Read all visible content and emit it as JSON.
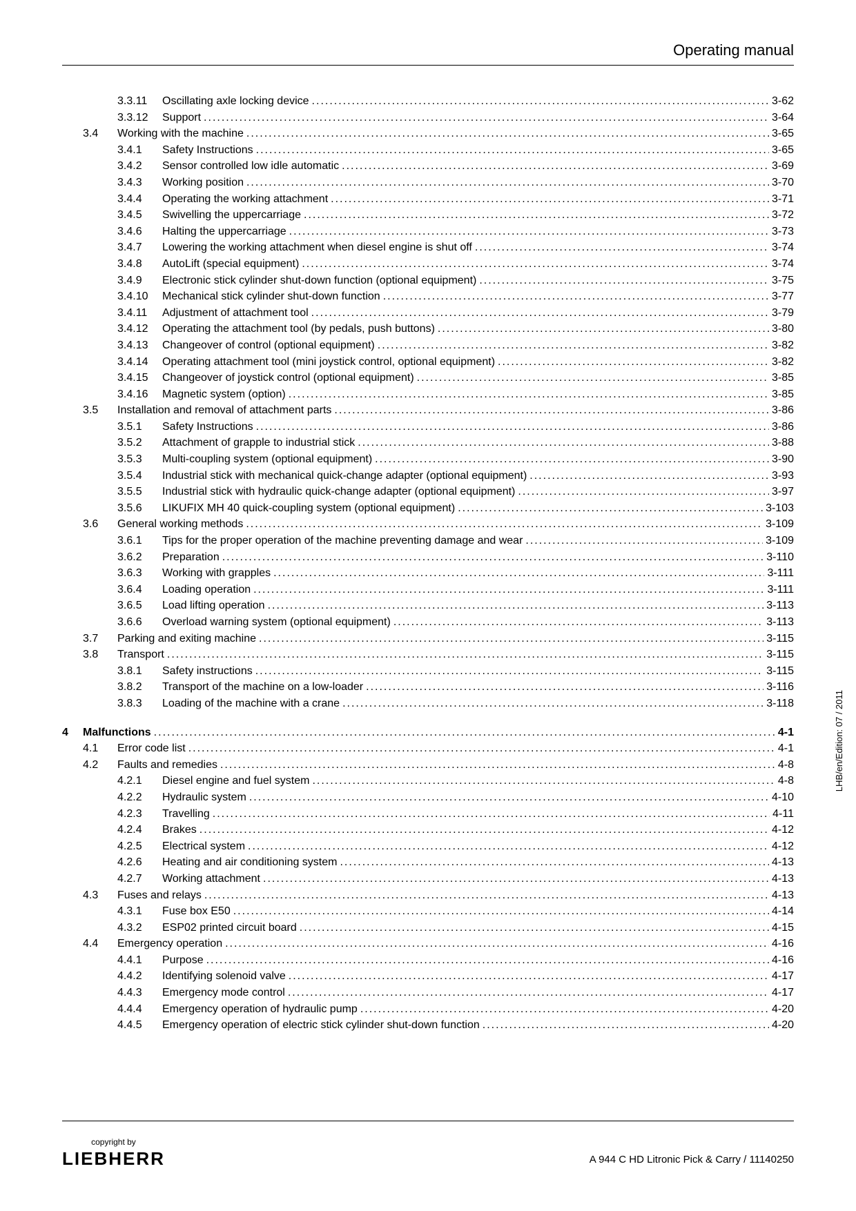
{
  "header": {
    "title": "Operating manual"
  },
  "side": {
    "text": "LHB/en/Edition: 07 / 2011"
  },
  "footer": {
    "copyright": "copyright by",
    "logo": "LIEBHERR",
    "docref": "A 944 C HD Litronic Pick & Carry / 11140250"
  },
  "toc": [
    {
      "type": "sub",
      "num": "3.3.11",
      "title": "Oscillating axle locking device",
      "page": "3-62"
    },
    {
      "type": "sub",
      "num": "3.3.12",
      "title": "Support",
      "page": "3-64"
    },
    {
      "type": "sec",
      "num": "3.4",
      "title": "Working with the machine",
      "page": "3-65"
    },
    {
      "type": "sub",
      "num": "3.4.1",
      "title": "Safety Instructions",
      "page": "3-65"
    },
    {
      "type": "sub",
      "num": "3.4.2",
      "title": "Sensor controlled low idle automatic",
      "page": "3-69"
    },
    {
      "type": "sub",
      "num": "3.4.3",
      "title": "Working position",
      "page": "3-70"
    },
    {
      "type": "sub",
      "num": "3.4.4",
      "title": "Operating the working attachment",
      "page": "3-71"
    },
    {
      "type": "sub",
      "num": "3.4.5",
      "title": "Swivelling the uppercarriage",
      "page": "3-72"
    },
    {
      "type": "sub",
      "num": "3.4.6",
      "title": "Halting the uppercarriage",
      "page": "3-73"
    },
    {
      "type": "sub",
      "num": "3.4.7",
      "title": "Lowering the working attachment when diesel engine is shut off",
      "page": "3-74"
    },
    {
      "type": "sub",
      "num": "3.4.8",
      "title": "AutoLift (special equipment)",
      "page": "3-74"
    },
    {
      "type": "sub",
      "num": "3.4.9",
      "title": "Electronic stick cylinder shut-down function (optional equipment)",
      "page": "3-75"
    },
    {
      "type": "sub",
      "num": "3.4.10",
      "title": "Mechanical stick cylinder shut-down function",
      "page": "3-77"
    },
    {
      "type": "sub",
      "num": "3.4.11",
      "title": "Adjustment of attachment tool",
      "page": "3-79"
    },
    {
      "type": "sub",
      "num": "3.4.12",
      "title": "Operating the attachment tool (by pedals, push buttons)",
      "page": "3-80"
    },
    {
      "type": "sub",
      "num": "3.4.13",
      "title": "Changeover of control (optional equipment)",
      "page": "3-82"
    },
    {
      "type": "sub",
      "num": "3.4.14",
      "title": "Operating attachment tool (mini joystick control, optional equipment)",
      "page": "3-82"
    },
    {
      "type": "sub",
      "num": "3.4.15",
      "title": "Changeover of joystick control (optional equipment)",
      "page": "3-85"
    },
    {
      "type": "sub",
      "num": "3.4.16",
      "title": "Magnetic system (option)",
      "page": "3-85"
    },
    {
      "type": "sec",
      "num": "3.5",
      "title": "Installation and removal of attachment parts",
      "page": "3-86"
    },
    {
      "type": "sub",
      "num": "3.5.1",
      "title": "Safety Instructions",
      "page": "3-86"
    },
    {
      "type": "sub",
      "num": "3.5.2",
      "title": "Attachment of grapple to industrial stick",
      "page": "3-88"
    },
    {
      "type": "sub",
      "num": "3.5.3",
      "title": "Multi-coupling system (optional equipment)",
      "page": "3-90"
    },
    {
      "type": "sub",
      "num": "3.5.4",
      "title": "Industrial stick with mechanical quick-change adapter (optional equipment)",
      "page": "3-93"
    },
    {
      "type": "sub",
      "num": "3.5.5",
      "title": "Industrial stick with hydraulic quick-change adapter (optional equipment)",
      "page": "3-97"
    },
    {
      "type": "sub",
      "num": "3.5.6",
      "title": "LIKUFIX MH 40 quick-coupling system (optional equipment)",
      "page": "3-103"
    },
    {
      "type": "sec",
      "num": "3.6",
      "title": "General working methods",
      "page": "3-109"
    },
    {
      "type": "sub",
      "num": "3.6.1",
      "title": "Tips for the proper operation of the machine preventing damage and wear",
      "page": "3-109"
    },
    {
      "type": "sub",
      "num": "3.6.2",
      "title": "Preparation",
      "page": "3-110"
    },
    {
      "type": "sub",
      "num": "3.6.3",
      "title": "Working with grapples",
      "page": "3-111"
    },
    {
      "type": "sub",
      "num": "3.6.4",
      "title": "Loading operation",
      "page": "3-111"
    },
    {
      "type": "sub",
      "num": "3.6.5",
      "title": "Load lifting operation",
      "page": "3-113"
    },
    {
      "type": "sub",
      "num": "3.6.6",
      "title": "Overload warning system (optional equipment)",
      "page": "3-113"
    },
    {
      "type": "sec",
      "num": "3.7",
      "title": "Parking and exiting machine",
      "page": "3-115"
    },
    {
      "type": "sec",
      "num": "3.8",
      "title": "Transport",
      "page": "3-115"
    },
    {
      "type": "sub",
      "num": "3.8.1",
      "title": "Safety instructions",
      "page": "3-115"
    },
    {
      "type": "sub",
      "num": "3.8.2",
      "title": "Transport of the machine on a low-loader",
      "page": "3-116"
    },
    {
      "type": "sub",
      "num": "3.8.3",
      "title": "Loading of the machine with a crane",
      "page": "3-118"
    },
    {
      "type": "spacer"
    },
    {
      "type": "chap",
      "num": "4",
      "title": "Malfunctions",
      "page": "4-1"
    },
    {
      "type": "sec",
      "num": "4.1",
      "title": "Error code list",
      "page": "4-1"
    },
    {
      "type": "sec",
      "num": "4.2",
      "title": "Faults and remedies",
      "page": "4-8"
    },
    {
      "type": "sub",
      "num": "4.2.1",
      "title": "Diesel engine and fuel system",
      "page": "4-8"
    },
    {
      "type": "sub",
      "num": "4.2.2",
      "title": "Hydraulic system",
      "page": "4-10"
    },
    {
      "type": "sub",
      "num": "4.2.3",
      "title": "Travelling",
      "page": "4-11"
    },
    {
      "type": "sub",
      "num": "4.2.4",
      "title": "Brakes",
      "page": "4-12"
    },
    {
      "type": "sub",
      "num": "4.2.5",
      "title": "Electrical system",
      "page": "4-12"
    },
    {
      "type": "sub",
      "num": "4.2.6",
      "title": "Heating and air conditioning system",
      "page": "4-13"
    },
    {
      "type": "sub",
      "num": "4.2.7",
      "title": "Working attachment",
      "page": "4-13"
    },
    {
      "type": "sec",
      "num": "4.3",
      "title": "Fuses and relays",
      "page": "4-13"
    },
    {
      "type": "sub",
      "num": "4.3.1",
      "title": "Fuse box E50",
      "page": "4-14"
    },
    {
      "type": "sub",
      "num": "4.3.2",
      "title": "ESP02 printed circuit board",
      "page": "4-15"
    },
    {
      "type": "sec",
      "num": "4.4",
      "title": "Emergency operation",
      "page": "4-16"
    },
    {
      "type": "sub",
      "num": "4.4.1",
      "title": "Purpose",
      "page": "4-16"
    },
    {
      "type": "sub",
      "num": "4.4.2",
      "title": "Identifying solenoid valve",
      "page": "4-17"
    },
    {
      "type": "sub",
      "num": "4.4.3",
      "title": "Emergency mode control",
      "page": "4-17"
    },
    {
      "type": "sub",
      "num": "4.4.4",
      "title": "Emergency operation of hydraulic pump",
      "page": "4-20"
    },
    {
      "type": "sub",
      "num": "4.4.5",
      "title": "Emergency operation of electric stick cylinder shut-down function",
      "page": "4-20"
    }
  ]
}
